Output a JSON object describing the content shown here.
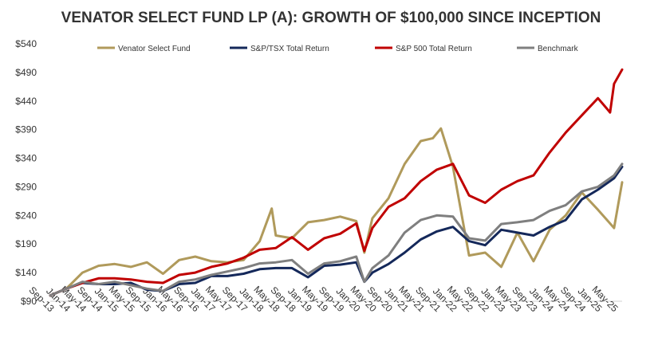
{
  "chart_data": {
    "type": "line",
    "title": "VENATOR SELECT FUND LP (A):  GROWTH OF $100,000 SINCE INCEPTION",
    "xlabel": "",
    "ylabel": "",
    "ylim": [
      90,
      540
    ],
    "y_ticks": [
      "$90",
      "$140",
      "$190",
      "$240",
      "$290",
      "$340",
      "$390",
      "$440",
      "$490",
      "$540"
    ],
    "y_tick_values": [
      90,
      140,
      190,
      240,
      290,
      340,
      390,
      440,
      490,
      540
    ],
    "x_tick_labels": [
      "Sep-13",
      "Jan-14",
      "May-14",
      "Sep-14",
      "Jan-15",
      "May-15",
      "Sep-15",
      "Jan-16",
      "May-16",
      "Sep-16",
      "Jan-17",
      "May-17",
      "Sep-17",
      "Jan-18",
      "May-18",
      "Sep-18",
      "Jan-19",
      "May-19",
      "Sep-19",
      "Jan-20",
      "May-20",
      "Sep-20",
      "Jan-21",
      "May-21",
      "Sep-21",
      "Jan-22",
      "May-22",
      "Sep-22",
      "Jan-23",
      "May-23",
      "Sep-23",
      "Jan-24",
      "May-24",
      "Sep-24",
      "Jan-25",
      "May-25"
    ],
    "grid": false,
    "legend_position": "top",
    "series": [
      {
        "name": "Venator Select Fund",
        "color": "#B09A5B",
        "x": [
          "Sep-13",
          "Jan-14",
          "May-14",
          "Sep-14",
          "Jan-15",
          "May-15",
          "Sep-15",
          "Jan-16",
          "May-16",
          "Sep-16",
          "Jan-17",
          "May-17",
          "Sep-17",
          "Jan-18",
          "Apr-18",
          "May-18",
          "Sep-18",
          "Jan-19",
          "May-19",
          "Sep-19",
          "Jan-20",
          "Mar-20",
          "May-20",
          "Sep-20",
          "Jan-21",
          "May-21",
          "Aug-21",
          "Oct-21",
          "Jan-22",
          "May-22",
          "Sep-22",
          "Jan-23",
          "May-23",
          "Sep-23",
          "Jan-24",
          "May-24",
          "Sep-24",
          "Jan-25",
          "May-25",
          "Jul-25"
        ],
        "values": [
          100,
          112,
          140,
          152,
          155,
          150,
          158,
          138,
          162,
          168,
          160,
          158,
          162,
          195,
          252,
          205,
          200,
          228,
          232,
          238,
          230,
          175,
          235,
          270,
          330,
          370,
          375,
          392,
          325,
          170,
          175,
          150,
          210,
          160,
          215,
          240,
          280,
          250,
          218,
          298
        ]
      },
      {
        "name": "S&P/TSX Total Return",
        "color": "#14285A",
        "x": [
          "Sep-13",
          "Jan-14",
          "May-14",
          "Sep-14",
          "Jan-15",
          "May-15",
          "Sep-15",
          "Jan-16",
          "May-16",
          "Sep-16",
          "Jan-17",
          "May-17",
          "Sep-17",
          "Jan-18",
          "May-18",
          "Sep-18",
          "Jan-19",
          "May-19",
          "Sep-19",
          "Jan-20",
          "Mar-20",
          "May-20",
          "Sep-20",
          "Jan-21",
          "May-21",
          "Sep-21",
          "Jan-22",
          "May-22",
          "Sep-22",
          "Jan-23",
          "May-23",
          "Sep-23",
          "Jan-24",
          "May-24",
          "Sep-24",
          "Jan-25",
          "May-25",
          "Jul-25"
        ],
        "values": [
          100,
          112,
          122,
          120,
          120,
          122,
          110,
          108,
          120,
          122,
          134,
          134,
          138,
          146,
          148,
          148,
          132,
          152,
          154,
          158,
          124,
          140,
          155,
          175,
          198,
          212,
          220,
          195,
          188,
          215,
          210,
          205,
          220,
          232,
          268,
          285,
          305,
          325
        ]
      },
      {
        "name": "S&P 500 Total Return",
        "color": "#C00000",
        "x": [
          "Sep-13",
          "Jan-14",
          "May-14",
          "Sep-14",
          "Jan-15",
          "May-15",
          "Sep-15",
          "Jan-16",
          "May-16",
          "Sep-16",
          "Jan-17",
          "May-17",
          "Sep-17",
          "Jan-18",
          "May-18",
          "Sep-18",
          "Jan-19",
          "May-19",
          "Sep-19",
          "Jan-20",
          "Mar-20",
          "May-20",
          "Sep-20",
          "Jan-21",
          "May-21",
          "Sep-21",
          "Jan-22",
          "May-22",
          "Sep-22",
          "Jan-23",
          "May-23",
          "Sep-23",
          "Jan-24",
          "May-24",
          "Sep-24",
          "Jan-25",
          "Apr-25",
          "May-25",
          "Jul-25"
        ],
        "values": [
          100,
          112,
          122,
          130,
          130,
          128,
          124,
          122,
          136,
          140,
          150,
          156,
          166,
          180,
          183,
          202,
          180,
          200,
          208,
          226,
          178,
          218,
          255,
          270,
          300,
          320,
          330,
          275,
          262,
          285,
          300,
          310,
          350,
          385,
          415,
          445,
          420,
          470,
          495
        ]
      },
      {
        "name": "Benchmark",
        "color": "#7F7F7F",
        "x": [
          "Sep-13",
          "Jan-14",
          "May-14",
          "Sep-14",
          "Jan-15",
          "May-15",
          "Sep-15",
          "Jan-16",
          "May-16",
          "Sep-16",
          "Jan-17",
          "May-17",
          "Sep-17",
          "Jan-18",
          "May-18",
          "Sep-18",
          "Jan-19",
          "May-19",
          "Sep-19",
          "Jan-20",
          "Mar-20",
          "May-20",
          "Sep-20",
          "Jan-21",
          "May-21",
          "Sep-21",
          "Jan-22",
          "May-22",
          "Sep-22",
          "Jan-23",
          "May-23",
          "Sep-23",
          "Jan-24",
          "May-24",
          "Sep-24",
          "Jan-25",
          "May-25",
          "Jul-25"
        ],
        "values": [
          100,
          112,
          124,
          120,
          124,
          118,
          112,
          108,
          124,
          128,
          136,
          142,
          148,
          156,
          158,
          162,
          138,
          156,
          160,
          168,
          124,
          148,
          170,
          210,
          232,
          240,
          238,
          200,
          196,
          225,
          228,
          232,
          248,
          258,
          282,
          290,
          310,
          330
        ]
      }
    ]
  }
}
